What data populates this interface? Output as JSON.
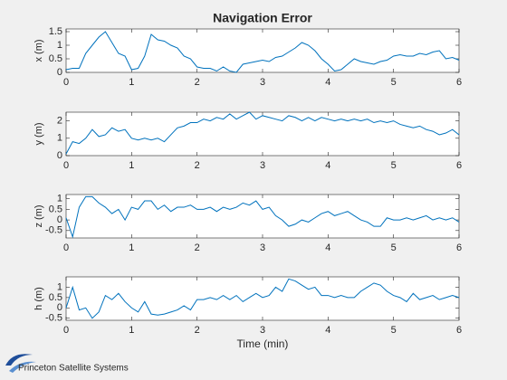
{
  "chart_data": [
    {
      "type": "line",
      "title": "Navigation Error",
      "y_label": "x (m)",
      "x": [
        0,
        0.1,
        0.2,
        0.3,
        0.4,
        0.5,
        0.6,
        0.7,
        0.8,
        0.9,
        1,
        1.1,
        1.2,
        1.3,
        1.4,
        1.5,
        1.6,
        1.7,
        1.8,
        1.9,
        2,
        2.1,
        2.2,
        2.3,
        2.4,
        2.5,
        2.6,
        2.7,
        2.8,
        2.9,
        3,
        3.1,
        3.2,
        3.3,
        3.4,
        3.5,
        3.6,
        3.7,
        3.8,
        3.9,
        4,
        4.1,
        4.2,
        4.3,
        4.4,
        4.5,
        4.6,
        4.7,
        4.8,
        4.9,
        5,
        5.1,
        5.2,
        5.3,
        5.4,
        5.5,
        5.6,
        5.7,
        5.8,
        5.9,
        6
      ],
      "series": [
        {
          "color": "#0072bd",
          "values": [
            0.1,
            0.15,
            0.15,
            0.7,
            1.0,
            1.3,
            1.5,
            1.1,
            0.7,
            0.6,
            0.1,
            0.15,
            0.6,
            1.4,
            1.2,
            1.15,
            1.0,
            0.9,
            0.6,
            0.5,
            0.2,
            0.15,
            0.15,
            0.05,
            0.2,
            0.05,
            0.0,
            0.3,
            0.35,
            0.4,
            0.45,
            0.4,
            0.55,
            0.6,
            0.75,
            0.9,
            1.1,
            1.0,
            0.8,
            0.5,
            0.3,
            0.05,
            0.1,
            0.3,
            0.5,
            0.4,
            0.35,
            0.3,
            0.4,
            0.45,
            0.6,
            0.65,
            0.6,
            0.6,
            0.7,
            0.65,
            0.75,
            0.8,
            0.5,
            0.55,
            0.45
          ]
        }
      ],
      "xlim": [
        0,
        6
      ],
      "xticks": [
        0,
        1,
        2,
        3,
        4,
        5,
        6
      ],
      "ylim": [
        0,
        1.6
      ],
      "yticks": [
        0,
        0.5,
        1,
        1.5
      ]
    },
    {
      "type": "line",
      "y_label": "y (m)",
      "x": [
        0,
        0.1,
        0.2,
        0.3,
        0.4,
        0.5,
        0.6,
        0.7,
        0.8,
        0.9,
        1,
        1.1,
        1.2,
        1.3,
        1.4,
        1.5,
        1.6,
        1.7,
        1.8,
        1.9,
        2,
        2.1,
        2.2,
        2.3,
        2.4,
        2.5,
        2.6,
        2.7,
        2.8,
        2.9,
        3,
        3.1,
        3.2,
        3.3,
        3.4,
        3.5,
        3.6,
        3.7,
        3.8,
        3.9,
        4,
        4.1,
        4.2,
        4.3,
        4.4,
        4.5,
        4.6,
        4.7,
        4.8,
        4.9,
        5,
        5.1,
        5.2,
        5.3,
        5.4,
        5.5,
        5.6,
        5.7,
        5.8,
        5.9,
        6
      ],
      "series": [
        {
          "color": "#0072bd",
          "values": [
            0.1,
            0.8,
            0.7,
            1.0,
            1.5,
            1.1,
            1.2,
            1.6,
            1.4,
            1.5,
            1.0,
            0.9,
            1.0,
            0.9,
            1.0,
            0.8,
            1.2,
            1.6,
            1.7,
            1.9,
            1.9,
            2.1,
            2.0,
            2.2,
            2.1,
            2.4,
            2.1,
            2.3,
            2.5,
            2.1,
            2.3,
            2.2,
            2.1,
            2.0,
            2.3,
            2.2,
            2.0,
            2.2,
            2.0,
            2.2,
            2.1,
            2.0,
            2.1,
            2.0,
            2.1,
            2.0,
            2.1,
            1.9,
            2.0,
            1.9,
            2.0,
            1.8,
            1.7,
            1.6,
            1.7,
            1.5,
            1.4,
            1.2,
            1.3,
            1.5,
            1.2
          ]
        }
      ],
      "xlim": [
        0,
        6
      ],
      "xticks": [
        0,
        1,
        2,
        3,
        4,
        5,
        6
      ],
      "ylim": [
        0,
        2.5
      ],
      "yticks": [
        0,
        1,
        2
      ]
    },
    {
      "type": "line",
      "y_label": "z (m)",
      "x": [
        0,
        0.1,
        0.2,
        0.3,
        0.4,
        0.5,
        0.6,
        0.7,
        0.8,
        0.9,
        1,
        1.1,
        1.2,
        1.3,
        1.4,
        1.5,
        1.6,
        1.7,
        1.8,
        1.9,
        2,
        2.1,
        2.2,
        2.3,
        2.4,
        2.5,
        2.6,
        2.7,
        2.8,
        2.9,
        3,
        3.1,
        3.2,
        3.3,
        3.4,
        3.5,
        3.6,
        3.7,
        3.8,
        3.9,
        4,
        4.1,
        4.2,
        4.3,
        4.4,
        4.5,
        4.6,
        4.7,
        4.8,
        4.9,
        5,
        5.1,
        5.2,
        5.3,
        5.4,
        5.5,
        5.6,
        5.7,
        5.8,
        5.9,
        6
      ],
      "series": [
        {
          "color": "#0072bd",
          "values": [
            0.1,
            -0.8,
            0.6,
            1.1,
            1.1,
            0.8,
            0.6,
            0.3,
            0.5,
            0.0,
            0.6,
            0.5,
            0.9,
            0.9,
            0.5,
            0.7,
            0.4,
            0.6,
            0.6,
            0.7,
            0.5,
            0.5,
            0.6,
            0.4,
            0.6,
            0.5,
            0.6,
            0.8,
            0.7,
            0.9,
            0.5,
            0.6,
            0.2,
            0.0,
            -0.3,
            -0.2,
            0.0,
            -0.1,
            0.1,
            0.3,
            0.4,
            0.2,
            0.3,
            0.4,
            0.2,
            0.0,
            -0.1,
            -0.3,
            -0.3,
            0.1,
            0.0,
            0.0,
            0.1,
            0.0,
            0.1,
            0.2,
            0.0,
            0.1,
            0.0,
            0.1,
            -0.1
          ]
        }
      ],
      "xlim": [
        0,
        6
      ],
      "xticks": [
        0,
        1,
        2,
        3,
        4,
        5,
        6
      ],
      "ylim": [
        -0.85,
        1.2
      ],
      "yticks": [
        -0.5,
        0,
        0.5,
        1
      ]
    },
    {
      "type": "line",
      "y_label": "h (m)",
      "x_label": "Time (min)",
      "x": [
        0,
        0.1,
        0.2,
        0.3,
        0.4,
        0.5,
        0.6,
        0.7,
        0.8,
        0.9,
        1,
        1.1,
        1.2,
        1.3,
        1.4,
        1.5,
        1.6,
        1.7,
        1.8,
        1.9,
        2,
        2.1,
        2.2,
        2.3,
        2.4,
        2.5,
        2.6,
        2.7,
        2.8,
        2.9,
        3,
        3.1,
        3.2,
        3.3,
        3.4,
        3.5,
        3.6,
        3.7,
        3.8,
        3.9,
        4,
        4.1,
        4.2,
        4.3,
        4.4,
        4.5,
        4.6,
        4.7,
        4.8,
        4.9,
        5,
        5.1,
        5.2,
        5.3,
        5.4,
        5.5,
        5.6,
        5.7,
        5.8,
        5.9,
        6
      ],
      "series": [
        {
          "color": "#0072bd",
          "values": [
            0.0,
            1.0,
            -0.1,
            0.0,
            -0.5,
            -0.2,
            0.6,
            0.4,
            0.7,
            0.3,
            0.0,
            -0.2,
            0.3,
            -0.3,
            -0.35,
            -0.3,
            -0.2,
            -0.1,
            0.1,
            -0.1,
            0.4,
            0.4,
            0.5,
            0.4,
            0.6,
            0.4,
            0.6,
            0.3,
            0.5,
            0.7,
            0.5,
            0.6,
            1.0,
            0.8,
            1.4,
            1.3,
            1.1,
            0.9,
            1.0,
            0.6,
            0.6,
            0.5,
            0.6,
            0.5,
            0.5,
            0.8,
            1.0,
            1.2,
            1.1,
            0.8,
            0.6,
            0.5,
            0.3,
            0.7,
            0.4,
            0.5,
            0.6,
            0.4,
            0.5,
            0.6,
            0.5
          ]
        }
      ],
      "xlim": [
        0,
        6
      ],
      "xticks": [
        0,
        1,
        2,
        3,
        4,
        5,
        6
      ],
      "ylim": [
        -0.6,
        1.5
      ],
      "yticks": [
        -0.5,
        0,
        0.5,
        1
      ]
    }
  ],
  "footer": {
    "logo_text": "Princeton Satellite Systems"
  }
}
